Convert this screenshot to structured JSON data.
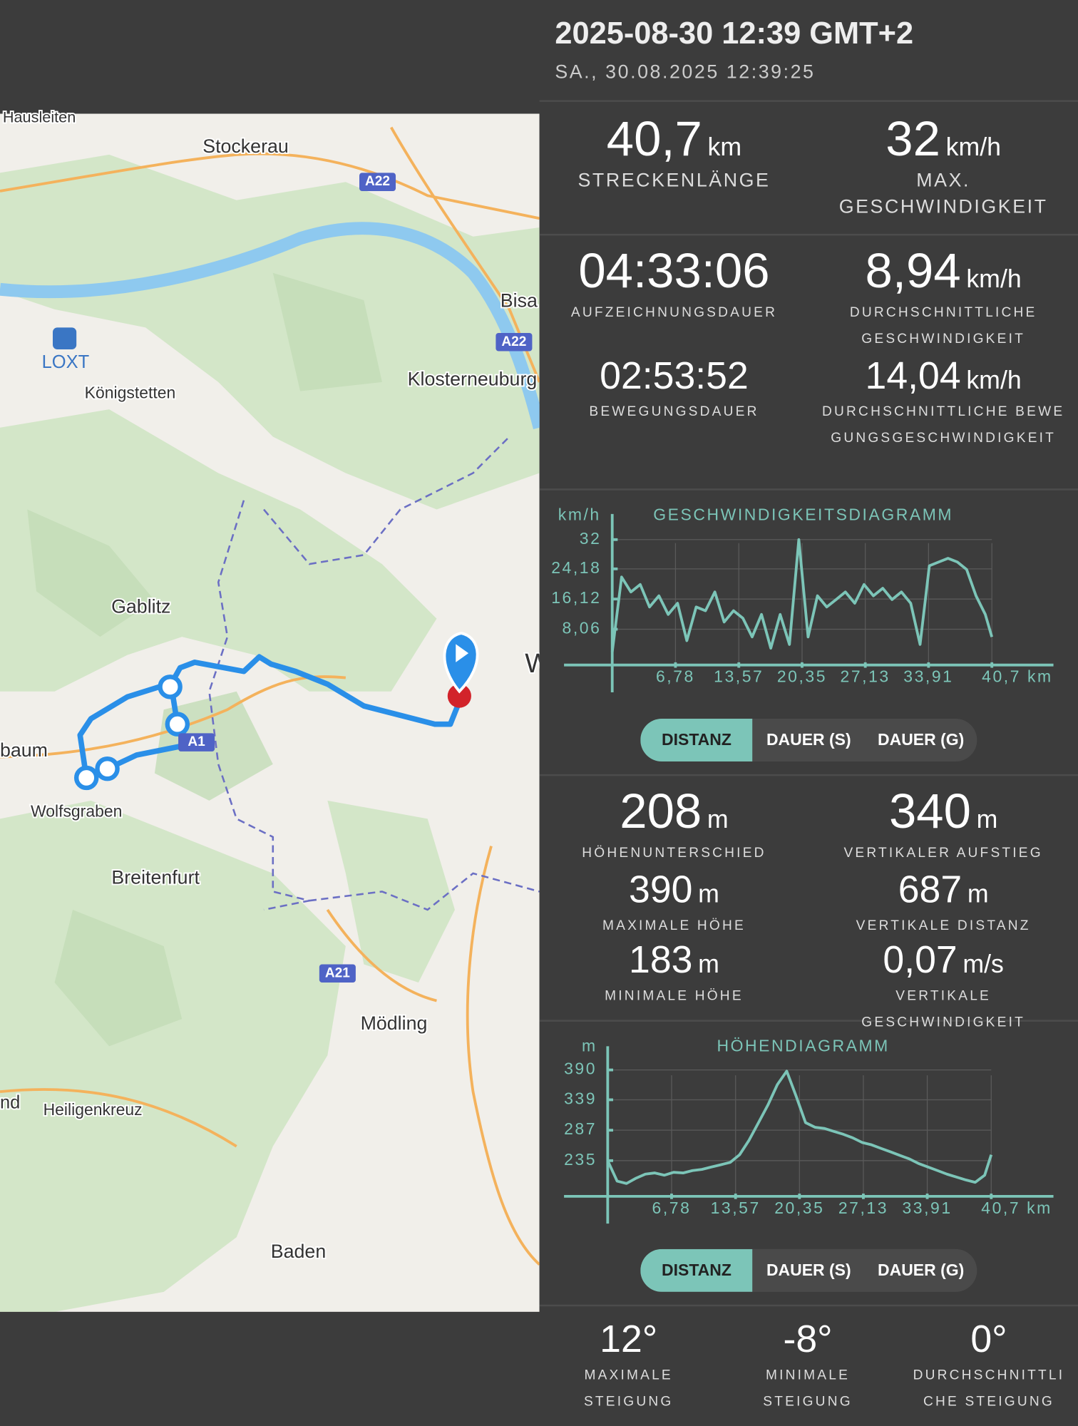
{
  "header": {
    "title": "2025-08-30 12:39 GMT+2",
    "subtitle": "SA., 30.08.2025 12:39:25"
  },
  "map": {
    "labels": [
      "Hausleiten",
      "Stockerau",
      "A22",
      "Bisa",
      "A22",
      "LOXT",
      "Königstetten",
      "Klosterneuburg",
      "Gablitz",
      "W",
      "baum",
      "A1",
      "Wolfsgraben",
      "Breitenfurt",
      "A21",
      "Mödling",
      "nd",
      "Heiligenkreuz",
      "Baden"
    ]
  },
  "stats": [
    {
      "value": "40,7",
      "unit": "km",
      "label": "STRECKENLÄNGE"
    },
    {
      "value": "32",
      "unit": "km/h",
      "label": "MAX. GESCHWINDIGKEIT"
    },
    {
      "value": "04:33:06",
      "label": "AUFZEICHNUNGSDAUER"
    },
    {
      "value": "8,94",
      "unit": "km/h",
      "label": "DURCHSCHNITTLICHE GESCHWINDIGKEIT"
    },
    {
      "value": "02:53:52",
      "label": "BEWEGUNGSDAUER"
    },
    {
      "value": "14,04",
      "unit": "km/h",
      "label": "DURCHSCHNITTLICHE BEWEGUNGSGESCHWINDIGKEIT"
    }
  ],
  "speed_chart": {
    "type": "line",
    "title": "GESCHWINDIGKEITSDIAGRAMM",
    "y_label": "km/h",
    "color": "#7cc5b8",
    "grid": true,
    "x": [
      0,
      1,
      2,
      3,
      4,
      5,
      6,
      7,
      8,
      9,
      10,
      11,
      12,
      13,
      14,
      15,
      16,
      17,
      18,
      19,
      20,
      21,
      22,
      23,
      24,
      25,
      26,
      27,
      28,
      29,
      30,
      31,
      32,
      33,
      34,
      35,
      36,
      37,
      38,
      39,
      40,
      40.7
    ],
    "values": [
      2,
      22,
      18,
      20,
      14,
      17,
      12,
      15,
      5,
      14,
      13,
      18,
      10,
      13,
      11,
      6,
      12,
      3,
      12,
      4,
      32,
      6,
      17,
      14,
      16,
      18,
      15,
      20,
      17,
      19,
      16,
      18,
      15,
      4,
      25,
      26,
      27,
      26,
      24,
      17,
      12,
      6
    ],
    "xlim": [
      0,
      47.3
    ],
    "ylim": [
      -1.5,
      36.4
    ],
    "xticks": [
      {
        "value": 6.78,
        "label": "6,78"
      },
      {
        "value": 13.57,
        "label": "13,57"
      },
      {
        "value": 20.35,
        "label": "20,35"
      },
      {
        "value": 27.13,
        "label": "27,13"
      },
      {
        "value": 33.91,
        "label": "33,91"
      },
      {
        "value": 40.7,
        "label": "40,7 km"
      }
    ],
    "yticks": [
      {
        "value": 8.06,
        "label": "8,06"
      },
      {
        "value": 16.12,
        "label": "16,12"
      },
      {
        "value": 24.18,
        "label": "24,18"
      },
      32
    ],
    "buttons": [
      "DISTANZ",
      "DAUER (S)",
      "DAUER (G)"
    ]
  },
  "elevation_stats": [
    {
      "value": "208",
      "unit": "m",
      "label": "HÖHENUNTERSCHIED"
    },
    {
      "value": "340",
      "unit": "m",
      "label": "VERTIKALER AUFSTIEG"
    },
    {
      "value": "390",
      "unit": "m",
      "label": "MAXIMALE HÖHE"
    },
    {
      "value": "687",
      "unit": "m",
      "label": "VERTIKALE DISTANZ"
    },
    {
      "value": "183",
      "unit": "m",
      "label": "MINIMALE HÖHE"
    },
    {
      "value": "0,07",
      "unit": "m/s",
      "label": "VERTIKALE GESCHWINDIGKEIT"
    }
  ],
  "elevation_chart": {
    "type": "line",
    "title": "HÖHENDIAGRAMM",
    "y_label": "m",
    "color": "#7cc5b8",
    "grid": true,
    "x": [
      0,
      1,
      2,
      3,
      4,
      5,
      6,
      7,
      8,
      9,
      10,
      11,
      12,
      13,
      14,
      15,
      16,
      17,
      18,
      19,
      20,
      21,
      22,
      23,
      24,
      25,
      26,
      27,
      28,
      29,
      30,
      31,
      32,
      33,
      34,
      35,
      36,
      37,
      38,
      39,
      40,
      40.7
    ],
    "values": [
      235,
      200,
      196,
      205,
      212,
      214,
      210,
      215,
      214,
      218,
      220,
      224,
      228,
      232,
      245,
      270,
      300,
      330,
      365,
      388,
      345,
      300,
      292,
      290,
      285,
      280,
      274,
      266,
      262,
      256,
      250,
      244,
      238,
      230,
      224,
      218,
      212,
      207,
      202,
      198,
      210,
      245
    ],
    "xlim": [
      0,
      47.3
    ],
    "ylim": [
      174,
      415
    ],
    "xticks": [
      {
        "value": 6.78,
        "label": "6,78"
      },
      {
        "value": 13.57,
        "label": "13,57"
      },
      {
        "value": 20.35,
        "label": "20,35"
      },
      {
        "value": 27.13,
        "label": "27,13"
      },
      {
        "value": 33.91,
        "label": "33,91"
      },
      {
        "value": 40.7,
        "label": "40,7 km"
      }
    ],
    "yticks": [
      235,
      287,
      339,
      390
    ],
    "buttons": [
      "DISTANZ",
      "DAUER (S)",
      "DAUER (G)"
    ]
  },
  "slope_stats": [
    {
      "value": "12°",
      "label": "MAXIMALE STEIGUNG"
    },
    {
      "value": "-8°",
      "label": "MINIMALE STEIGUNG"
    },
    {
      "value": "0°",
      "label": "DURCHSCHNITTLICHE STEIGUNG"
    }
  ]
}
